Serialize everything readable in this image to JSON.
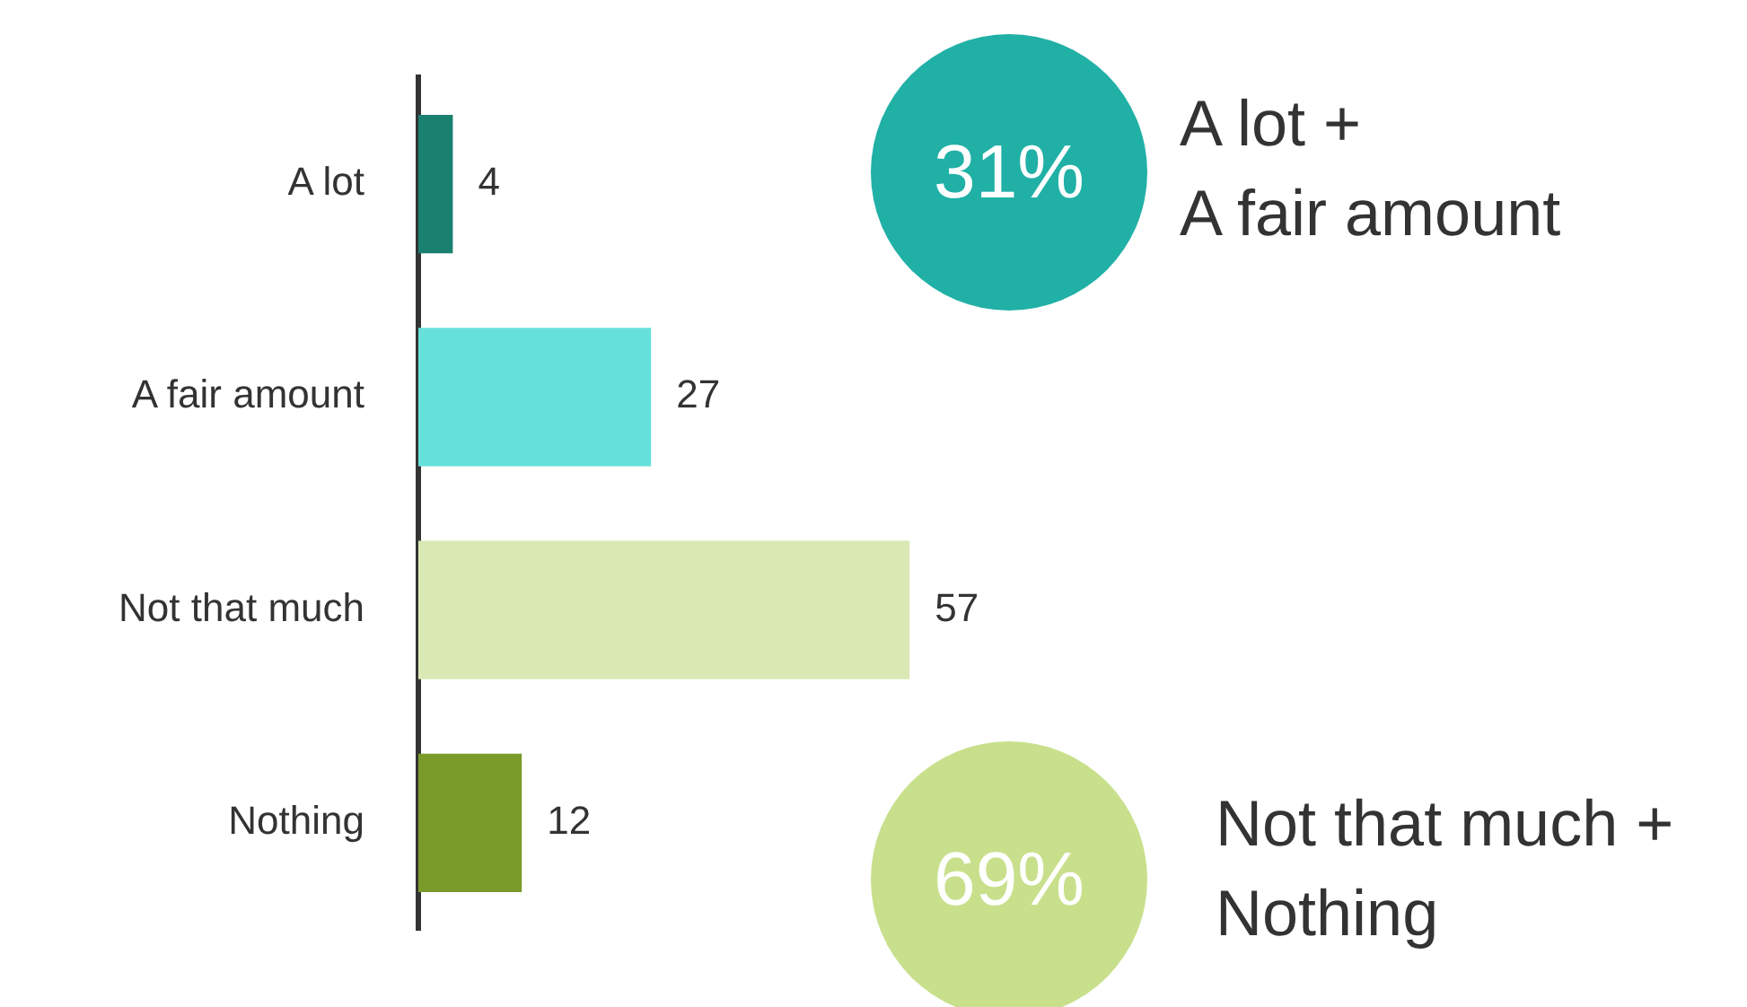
{
  "chart_data": {
    "type": "bar",
    "orientation": "horizontal",
    "categories": [
      "A lot",
      "A fair amount",
      "Not that much",
      "Nothing"
    ],
    "values": [
      4,
      27,
      57,
      12
    ],
    "colors": [
      "#1a8070",
      "#66e0da",
      "#dae9b4",
      "#7a9a2a"
    ],
    "tick_labels": "y",
    "legend": false,
    "data_labels": true,
    "annotations": [
      "31%",
      "A lot +\nA fair amount",
      "69%",
      "Not that much  +\nNothing"
    ]
  }
}
